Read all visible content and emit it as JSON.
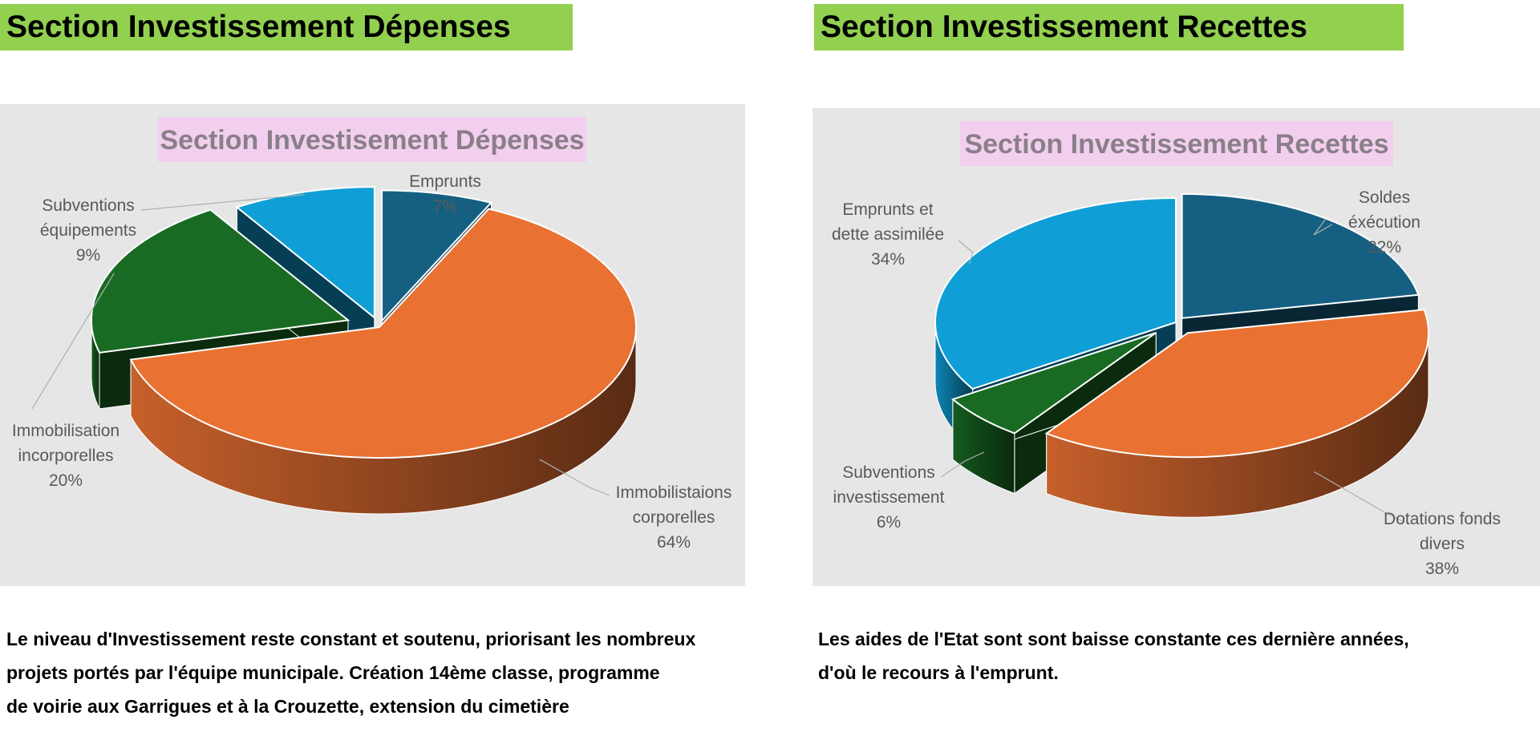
{
  "headers": {
    "left": "Section Investissement Dépenses",
    "right": "Section Investissement Recettes"
  },
  "chart_data": [
    {
      "type": "pie",
      "title": "Section Investisement Dépenses",
      "slices": [
        {
          "label": "Emprunts",
          "value": 7,
          "display": "7%",
          "color": "#156082"
        },
        {
          "label": "Immobilistaions corporelles",
          "value": 64,
          "display": "64%",
          "color": "#e97132"
        },
        {
          "label": "Immobilisation incorporelles",
          "value": 20,
          "display": "20%",
          "color": "#196b24"
        },
        {
          "label": "Subventions équipements",
          "value": 9,
          "display": "9%",
          "color": "#0f9ed5"
        }
      ]
    },
    {
      "type": "pie",
      "title": "Section Investissement Recettes",
      "slices": [
        {
          "label": "Soldes éxécution",
          "value": 22,
          "display": "22%",
          "color": "#156082"
        },
        {
          "label": "Dotations fonds divers",
          "value": 38,
          "display": "38%",
          "color": "#e97132"
        },
        {
          "label": "Subventions investissement",
          "value": 6,
          "display": "6%",
          "color": "#196b24"
        },
        {
          "label": "Emprunts et dette assimilée",
          "value": 34,
          "display": "34%",
          "color": "#0f9ed5"
        }
      ]
    }
  ],
  "descriptions": {
    "left": [
      "Le niveau d'Investissement reste constant et soutenu, priorisant les nombreux",
      "projets portés par l'équipe municipale. Création 14ème classe, programme",
      "de voirie aux Garrigues et à la Crouzette, extension du cimetière"
    ],
    "right": [
      "Les aides de l'Etat sont sont baisse constante ces dernière années,",
      "d'où le recours à l'emprunt."
    ]
  }
}
